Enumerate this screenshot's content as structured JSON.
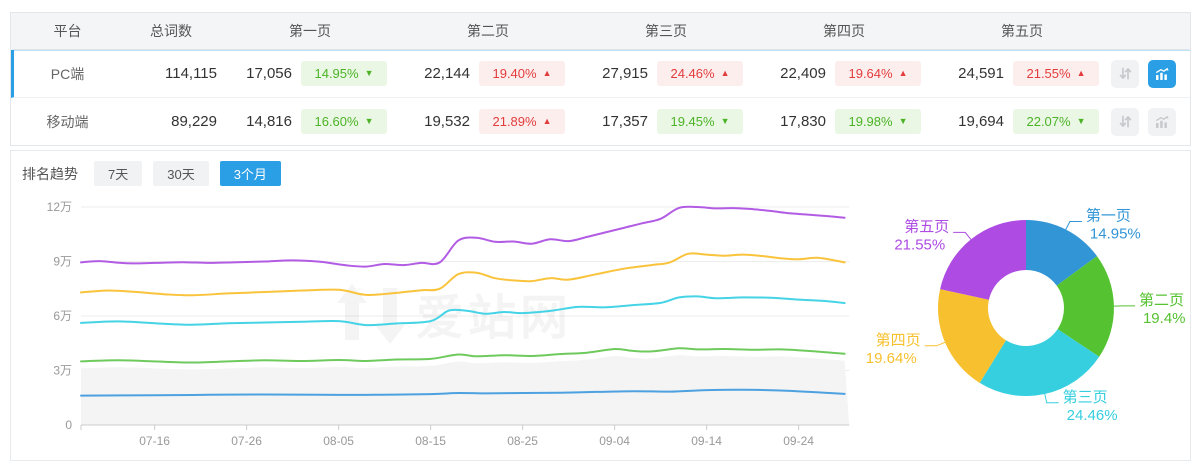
{
  "table": {
    "columns": [
      "平台",
      "总词数",
      "第一页",
      "第二页",
      "第三页",
      "第四页",
      "第五页"
    ],
    "rows": [
      {
        "platform": "PC端",
        "total": "114,115",
        "selected": true,
        "chart_active": true,
        "pages": [
          {
            "value": "17,056",
            "change": "14.95%",
            "dir": "down"
          },
          {
            "value": "22,144",
            "change": "19.40%",
            "dir": "up"
          },
          {
            "value": "27,915",
            "change": "24.46%",
            "dir": "up"
          },
          {
            "value": "22,409",
            "change": "19.64%",
            "dir": "up"
          },
          {
            "value": "24,591",
            "change": "21.55%",
            "dir": "up"
          }
        ]
      },
      {
        "platform": "移动端",
        "total": "89,229",
        "selected": false,
        "chart_active": false,
        "pages": [
          {
            "value": "14,816",
            "change": "16.60%",
            "dir": "down"
          },
          {
            "value": "19,532",
            "change": "21.89%",
            "dir": "up"
          },
          {
            "value": "17,357",
            "change": "19.45%",
            "dir": "down"
          },
          {
            "value": "17,830",
            "change": "19.98%",
            "dir": "down"
          },
          {
            "value": "19,694",
            "change": "22.07%",
            "dir": "down"
          }
        ]
      }
    ]
  },
  "trend": {
    "label": "排名趋势",
    "tabs": [
      {
        "label": "7天",
        "active": false
      },
      {
        "label": "30天",
        "active": false
      },
      {
        "label": "3个月",
        "active": true
      }
    ]
  },
  "watermark": "爱站网",
  "colors": {
    "accent_blue": "#2b9fe5",
    "badge_up_red": "#e23c3c",
    "badge_up_bg": "#fdeeee",
    "badge_down_green": "#4cb327",
    "badge_down_bg": "#eaf7e4"
  },
  "chart_data": [
    {
      "type": "line",
      "title": "排名趋势 3个月 (PC端)",
      "note": "cumulative keyword counts, unit = 万 (10,000); day index 0 ≈ 07-08, tick days at 8,18,28,38,48,58,68,78",
      "x_ticks": [
        "07-16",
        "07-26",
        "08-05",
        "08-15",
        "08-25",
        "09-04",
        "09-14",
        "09-24"
      ],
      "y_ticks": [
        "0",
        "3万",
        "6万",
        "9万",
        "12万"
      ],
      "ylim": [
        0,
        130000
      ],
      "grid": true,
      "series": [
        {
          "name": "第一页",
          "color": "#4da1e0",
          "points": [
            [
              0,
              1.62
            ],
            [
              8,
              1.64
            ],
            [
              14,
              1.66
            ],
            [
              20,
              1.68
            ],
            [
              26,
              1.66
            ],
            [
              32,
              1.66
            ],
            [
              38,
              1.7
            ],
            [
              41,
              1.76
            ],
            [
              44,
              1.74
            ],
            [
              48,
              1.76
            ],
            [
              52,
              1.78
            ],
            [
              56,
              1.82
            ],
            [
              60,
              1.86
            ],
            [
              64,
              1.84
            ],
            [
              68,
              1.92
            ],
            [
              72,
              1.94
            ],
            [
              76,
              1.9
            ],
            [
              80,
              1.8
            ],
            [
              83,
              1.71
            ]
          ]
        },
        {
          "name": "第二页",
          "color": "#6fca5e",
          "area": "#f4f4f4",
          "points": [
            [
              0,
              3.5
            ],
            [
              4,
              3.56
            ],
            [
              8,
              3.5
            ],
            [
              12,
              3.44
            ],
            [
              16,
              3.5
            ],
            [
              20,
              3.56
            ],
            [
              24,
              3.52
            ],
            [
              28,
              3.58
            ],
            [
              31,
              3.52
            ],
            [
              34,
              3.6
            ],
            [
              38,
              3.64
            ],
            [
              41,
              3.88
            ],
            [
              43,
              3.78
            ],
            [
              46,
              3.84
            ],
            [
              49,
              3.8
            ],
            [
              52,
              3.9
            ],
            [
              55,
              3.98
            ],
            [
              58,
              4.18
            ],
            [
              60,
              4.08
            ],
            [
              62,
              4.05
            ],
            [
              65,
              4.22
            ],
            [
              67,
              4.16
            ],
            [
              70,
              4.18
            ],
            [
              73,
              4.14
            ],
            [
              76,
              4.16
            ],
            [
              79,
              4.08
            ],
            [
              81,
              4.0
            ],
            [
              83,
              3.92
            ]
          ]
        },
        {
          "name": "第三页",
          "color": "#45d3e6",
          "points": [
            [
              0,
              5.62
            ],
            [
              4,
              5.7
            ],
            [
              8,
              5.6
            ],
            [
              12,
              5.52
            ],
            [
              16,
              5.6
            ],
            [
              20,
              5.64
            ],
            [
              24,
              5.68
            ],
            [
              28,
              5.72
            ],
            [
              31,
              5.5
            ],
            [
              34,
              5.58
            ],
            [
              38,
              5.72
            ],
            [
              40,
              6.3
            ],
            [
              42,
              6.28
            ],
            [
              44,
              6.12
            ],
            [
              46,
              6.22
            ],
            [
              48,
              6.16
            ],
            [
              51,
              6.28
            ],
            [
              54,
              6.5
            ],
            [
              57,
              6.48
            ],
            [
              60,
              6.6
            ],
            [
              63,
              6.72
            ],
            [
              65,
              7.02
            ],
            [
              67,
              7.08
            ],
            [
              69,
              6.98
            ],
            [
              72,
              7.02
            ],
            [
              75,
              7.0
            ],
            [
              78,
              6.9
            ],
            [
              81,
              6.82
            ],
            [
              83,
              6.71
            ]
          ]
        },
        {
          "name": "第四页",
          "color": "#fac33c",
          "points": [
            [
              0,
              7.3
            ],
            [
              3,
              7.4
            ],
            [
              6,
              7.32
            ],
            [
              9,
              7.2
            ],
            [
              12,
              7.14
            ],
            [
              16,
              7.24
            ],
            [
              20,
              7.32
            ],
            [
              24,
              7.4
            ],
            [
              28,
              7.44
            ],
            [
              31,
              7.16
            ],
            [
              34,
              7.26
            ],
            [
              37,
              7.42
            ],
            [
              39,
              7.5
            ],
            [
              41,
              8.3
            ],
            [
              43,
              8.38
            ],
            [
              45,
              8.08
            ],
            [
              47,
              7.96
            ],
            [
              49,
              7.92
            ],
            [
              51,
              8.08
            ],
            [
              53,
              8.0
            ],
            [
              56,
              8.3
            ],
            [
              59,
              8.6
            ],
            [
              62,
              8.8
            ],
            [
              64,
              8.95
            ],
            [
              66,
              9.42
            ],
            [
              68,
              9.38
            ],
            [
              70,
              9.32
            ],
            [
              72,
              9.38
            ],
            [
              74,
              9.3
            ],
            [
              76,
              9.18
            ],
            [
              78,
              9.12
            ],
            [
              80,
              9.2
            ],
            [
              82,
              9.05
            ],
            [
              83,
              8.95
            ]
          ]
        },
        {
          "name": "第五页",
          "color": "#b25ce4",
          "points": [
            [
              0,
              8.95
            ],
            [
              2,
              9.02
            ],
            [
              5,
              8.9
            ],
            [
              8,
              8.92
            ],
            [
              11,
              8.96
            ],
            [
              14,
              8.92
            ],
            [
              17,
              8.96
            ],
            [
              20,
              9.0
            ],
            [
              23,
              9.06
            ],
            [
              26,
              8.98
            ],
            [
              29,
              8.78
            ],
            [
              31,
              8.72
            ],
            [
              33,
              8.86
            ],
            [
              35,
              8.8
            ],
            [
              37,
              8.92
            ],
            [
              39,
              8.95
            ],
            [
              41,
              10.15
            ],
            [
              43,
              10.3
            ],
            [
              45,
              10.08
            ],
            [
              47,
              10.1
            ],
            [
              49,
              9.98
            ],
            [
              51,
              10.22
            ],
            [
              53,
              10.12
            ],
            [
              55,
              10.35
            ],
            [
              57,
              10.6
            ],
            [
              59,
              10.85
            ],
            [
              61,
              11.1
            ],
            [
              63,
              11.35
            ],
            [
              65,
              11.95
            ],
            [
              67,
              12.0
            ],
            [
              69,
              11.92
            ],
            [
              71,
              11.94
            ],
            [
              73,
              11.88
            ],
            [
              75,
              11.78
            ],
            [
              77,
              11.65
            ],
            [
              79,
              11.58
            ],
            [
              81,
              11.5
            ],
            [
              83,
              11.41
            ]
          ]
        }
      ]
    },
    {
      "type": "pie",
      "donut": true,
      "title": "PC端页面分布",
      "slices": [
        {
          "label": "第一页",
          "pct": 14.95,
          "pct_label": "14.95%",
          "color": "#3295d6"
        },
        {
          "label": "第二页",
          "pct": 19.4,
          "pct_label": "19.4%",
          "color": "#55c231"
        },
        {
          "label": "第三页",
          "pct": 24.46,
          "pct_label": "24.46%",
          "color": "#36cfdf"
        },
        {
          "label": "第四页",
          "pct": 19.64,
          "pct_label": "19.64%",
          "color": "#f7c02f"
        },
        {
          "label": "第五页",
          "pct": 21.55,
          "pct_label": "21.55%",
          "color": "#ad4be3"
        }
      ]
    }
  ]
}
